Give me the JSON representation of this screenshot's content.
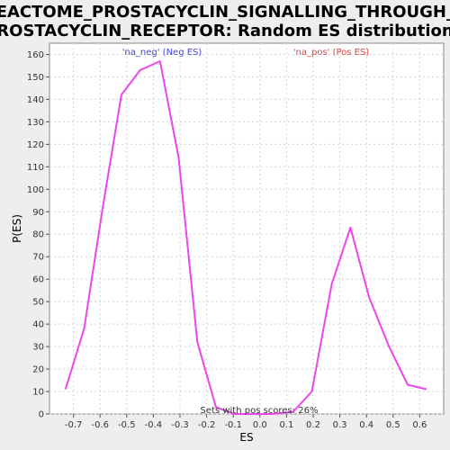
{
  "chart_data": {
    "type": "line",
    "title_line1": "REACTOME_PROSTACYCLIN_SIGNALLING_THROUGH_P",
    "title_line2": "ROSTACYCLIN_RECEPTOR: Random ES distribution",
    "xlabel": "ES",
    "ylabel": "P(ES)",
    "xlim": [
      -0.79,
      0.69
    ],
    "ylim": [
      0,
      165
    ],
    "x_ticks": [
      -0.7,
      -0.6,
      -0.5,
      -0.4,
      -0.3,
      -0.2,
      -0.1,
      0.0,
      0.1,
      0.2,
      0.3,
      0.4,
      0.5,
      0.6
    ],
    "y_ticks": [
      0,
      10,
      20,
      30,
      40,
      50,
      60,
      70,
      80,
      90,
      100,
      110,
      120,
      130,
      140,
      150,
      160
    ],
    "grid": true,
    "line_color": "#ee44ee",
    "series": [
      {
        "x": [
          -0.73,
          -0.66,
          -0.59,
          -0.52,
          -0.45,
          -0.375,
          -0.305,
          -0.235,
          -0.165,
          -0.095,
          -0.025,
          0.045,
          0.125,
          0.195,
          0.27,
          0.34,
          0.41,
          0.485,
          0.555,
          0.625
        ],
        "values": [
          11,
          38,
          92,
          142,
          153,
          157,
          114,
          32,
          3,
          0,
          0,
          0,
          1,
          10,
          58,
          83,
          52,
          30,
          13,
          11
        ]
      }
    ],
    "annotations": {
      "neg_label": "'na_neg' (Neg ES)",
      "neg_color": "#4444dd",
      "pos_label": "'na_pos' (Pos ES)",
      "pos_color": "#dd4444",
      "footer": "Sets with pos scores: 26%"
    }
  }
}
